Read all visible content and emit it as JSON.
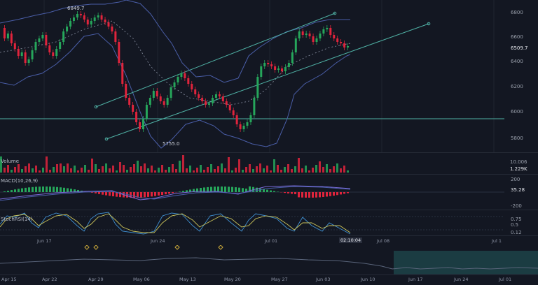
{
  "price_axis": [
    "6800",
    "6600",
    "6509.7",
    "6400",
    "6200",
    "6000",
    "5800"
  ],
  "price_current": "6509.7",
  "annotations": {
    "high": "6849.7",
    "low": "5755.0"
  },
  "volume": {
    "label": "Volume",
    "ticks": [
      "10.006",
      "1.229K"
    ]
  },
  "macd": {
    "label": "MACD(10,26,9)",
    "ticks": [
      "200",
      "35.28",
      "-200"
    ]
  },
  "stoch": {
    "label": "StochRSI(14)",
    "ticks": [
      "0.75",
      "0.5",
      "0.12"
    ]
  },
  "time_axis": [
    "Jun 17",
    "Jun 24",
    "Jul 01",
    "02:10:04",
    "Jul 08",
    "Jul 1"
  ],
  "nav_axis": [
    "Apr 15",
    "Apr 22",
    "Apr 29",
    "May 06",
    "May 13",
    "May 20",
    "May 27",
    "Jun 03",
    "Jun 10",
    "Jun 17",
    "Jun 24",
    "Jul 01"
  ],
  "colors": {
    "bg": "#131722",
    "up": "#26a65b",
    "down": "#e0243c",
    "band": "#4a5ea8",
    "channel": "#4fb0a4",
    "grid": "#1f2430"
  }
}
